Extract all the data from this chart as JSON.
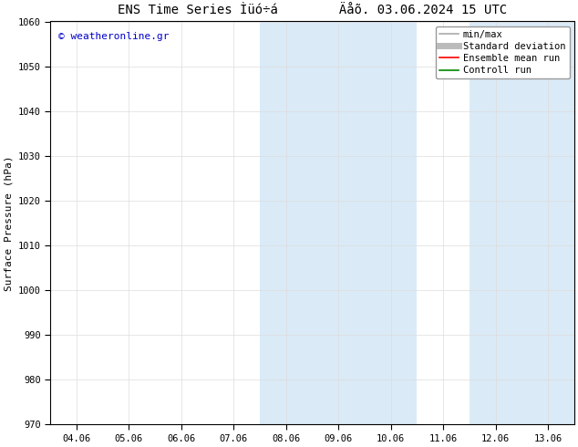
{
  "title": "ENS Time Series Ìüó÷á        Äåõ. 03.06.2024 15 UTC",
  "ylabel": "Surface Pressure (hPa)",
  "ylim": [
    970,
    1060
  ],
  "yticks": [
    970,
    980,
    990,
    1000,
    1010,
    1020,
    1030,
    1040,
    1050,
    1060
  ],
  "xtick_labels": [
    "04.06",
    "05.06",
    "06.06",
    "07.06",
    "08.06",
    "09.06",
    "10.06",
    "11.06",
    "12.06",
    "13.06"
  ],
  "xtick_positions": [
    0,
    1,
    2,
    3,
    4,
    5,
    6,
    7,
    8,
    9
  ],
  "xlim": [
    -0.5,
    9.5
  ],
  "shaded_regions": [
    {
      "xmin": 3.5,
      "xmax": 6.5,
      "color": "#daeaf7"
    },
    {
      "xmin": 7.5,
      "xmax": 9.5,
      "color": "#daeaf7"
    }
  ],
  "background_color": "#ffffff",
  "plot_bg_color": "#ffffff",
  "watermark_text": "© weatheronline.gr",
  "watermark_color": "#0000cc",
  "legend_entries": [
    {
      "label": "min/max",
      "color": "#aaaaaa",
      "lw": 1.2
    },
    {
      "label": "Standard deviation",
      "color": "#bbbbbb",
      "lw": 5
    },
    {
      "label": "Ensemble mean run",
      "color": "#ff0000",
      "lw": 1.2
    },
    {
      "label": "Controll run",
      "color": "#008800",
      "lw": 1.2
    }
  ],
  "grid_color": "#dddddd",
  "spine_color": "#000000",
  "tick_color": "#000000",
  "title_fontsize": 10,
  "ylabel_fontsize": 8,
  "tick_fontsize": 7.5,
  "legend_fontsize": 7.5,
  "watermark_fontsize": 8
}
